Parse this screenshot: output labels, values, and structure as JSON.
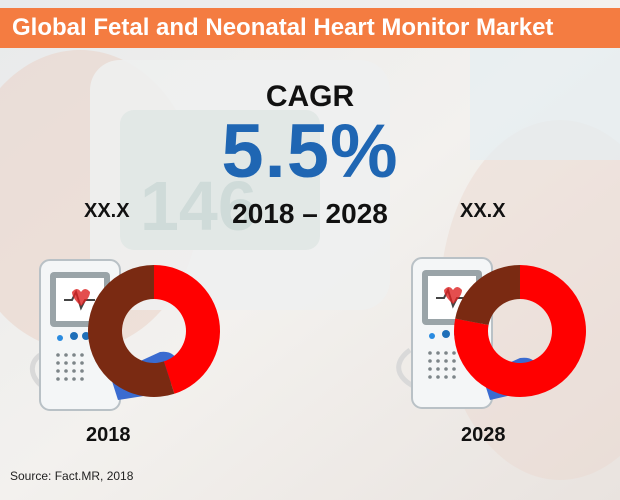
{
  "title": "Global Fetal and Neonatal Heart Monitor Market",
  "cagr": {
    "label": "CAGR",
    "value": "5.5%",
    "period": "2018 – 2028"
  },
  "colors": {
    "accent": "#f47c41",
    "blue": "#1f66b3",
    "market_share": "#ff0000",
    "remainder": "#7a2a12"
  },
  "source": "Source: Fact.MR, 2018",
  "chart_data": [
    {
      "type": "pie",
      "variant": "donut",
      "category": "2018",
      "value_label": "XX.X",
      "slices": [
        {
          "value": 0.45,
          "color": "#ff0000"
        },
        {
          "value": 0.55,
          "color": "#7a2a12"
        }
      ]
    },
    {
      "type": "pie",
      "variant": "donut",
      "category": "2028",
      "value_label": "XX.X",
      "slices": [
        {
          "value": 0.78,
          "color": "#ff0000"
        },
        {
          "value": 0.22,
          "color": "#7a2a12"
        }
      ]
    }
  ]
}
